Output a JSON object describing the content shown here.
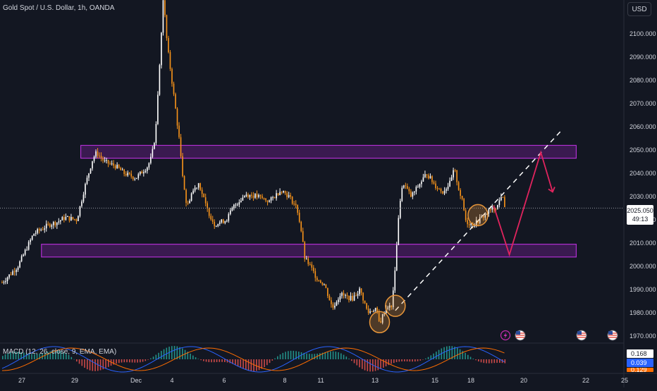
{
  "header": {
    "title": "Gold Spot / U.S. Dollar, 1h, OANDA",
    "currency": "USD"
  },
  "indicator": {
    "label": "MACD (12, 26, close, 9, EMA, EMA)",
    "values": [
      "0.168",
      "0.039",
      "0.129"
    ],
    "colors": [
      "#ffffff",
      "#2962ff",
      "#ff6d00"
    ]
  },
  "last_price": {
    "value": "2025.050",
    "countdown": "49:13"
  },
  "colors": {
    "background": "#131722",
    "candle_up": "#ffffff",
    "candle_down": "#f7931a",
    "zone_stroke": "#b02fd1",
    "zone_fill": "#6a1f8a",
    "forecast": "#e0245e",
    "circle": "#e8963a",
    "histogram_up": "#26a69a",
    "histogram_down": "#ef5350"
  },
  "icons": [
    "lightning-icon",
    "us-flag-icon"
  ],
  "chart_data": {
    "type": "candlestick",
    "title": "Gold Spot / U.S. Dollar, 1h, OANDA",
    "x_ticks": [
      "27",
      "29",
      "Dec",
      "4",
      "6",
      "8",
      "11",
      "13",
      "15",
      "18",
      "20",
      "22",
      "25"
    ],
    "y_ticks": [
      1970,
      1980,
      1990,
      2000,
      2010,
      2020,
      2030,
      2040,
      2050,
      2060,
      2070,
      2080,
      2090,
      2100
    ],
    "y_tick_labels": [
      "1970.000",
      "1980.000",
      "1990.000",
      "2000.000",
      "2010.000",
      "2020.000",
      "2030.000",
      "2040.000",
      "2050.000",
      "2060.000",
      "2070.000",
      "2080.000",
      "2090.000",
      "2100.000"
    ],
    "ylim": [
      1967,
      2117
    ],
    "grid": false,
    "trend_path": [
      [
        0,
        1993
      ],
      [
        4,
        2000
      ],
      [
        8,
        2014
      ],
      [
        12,
        2018
      ],
      [
        14,
        2019
      ],
      [
        16,
        2021
      ],
      [
        19,
        2020
      ],
      [
        21,
        2034
      ],
      [
        23,
        2046
      ],
      [
        24,
        2049
      ],
      [
        26,
        2045
      ],
      [
        29,
        2043
      ],
      [
        31,
        2040
      ],
      [
        34,
        2038
      ],
      [
        37,
        2043
      ],
      [
        38,
        2047
      ],
      [
        39,
        2057
      ],
      [
        40,
        2085
      ],
      [
        41,
        2116
      ],
      [
        42,
        2095
      ],
      [
        43,
        2082
      ],
      [
        44,
        2069
      ],
      [
        45,
        2055
      ],
      [
        46,
        2038
      ],
      [
        47,
        2025
      ],
      [
        48,
        2031
      ],
      [
        50,
        2036
      ],
      [
        52,
        2025
      ],
      [
        54,
        2018
      ],
      [
        57,
        2020
      ],
      [
        59,
        2026
      ],
      [
        62,
        2031
      ],
      [
        65,
        2030
      ],
      [
        68,
        2028
      ],
      [
        71,
        2033
      ],
      [
        73,
        2030
      ],
      [
        75,
        2025
      ],
      [
        76,
        2016
      ],
      [
        77,
        2003
      ],
      [
        78,
        2001
      ],
      [
        80,
        1995
      ],
      [
        82,
        1992
      ],
      [
        84,
        1982
      ],
      [
        86,
        1988
      ],
      [
        89,
        1986
      ],
      [
        91,
        1990
      ],
      [
        93,
        1980
      ],
      [
        95,
        1982
      ],
      [
        96,
        1975
      ],
      [
        97,
        1980
      ],
      [
        98,
        1983
      ],
      [
        99,
        1982
      ],
      [
        100,
        2000
      ],
      [
        101,
        2026
      ],
      [
        102,
        2036
      ],
      [
        104,
        2030
      ],
      [
        106,
        2035
      ],
      [
        108,
        2040
      ],
      [
        110,
        2035
      ],
      [
        112,
        2032
      ],
      [
        114,
        2036
      ],
      [
        115,
        2042
      ],
      [
        116,
        2034
      ],
      [
        117,
        2028
      ],
      [
        118,
        2019
      ],
      [
        120,
        2018
      ],
      [
        122,
        2021
      ],
      [
        124,
        2024
      ],
      [
        126,
        2026
      ],
      [
        127,
        2031
      ],
      [
        128,
        2025
      ]
    ],
    "zones": [
      {
        "x": [
          20,
          146
        ],
        "y": [
          2046.5,
          2052
        ]
      },
      {
        "x": [
          10,
          146
        ],
        "y": [
          2004,
          2009.5
        ]
      }
    ],
    "trendline": {
      "from": [
        100,
        1981
      ],
      "to": [
        142,
        2058
      ]
    },
    "forecast": [
      [
        125,
        2026
      ],
      [
        129,
        2005
      ],
      [
        137,
        2049
      ],
      [
        140,
        2032
      ]
    ],
    "circles": [
      [
        96,
        1976
      ],
      [
        100,
        1983
      ],
      [
        121,
        2022
      ]
    ]
  }
}
